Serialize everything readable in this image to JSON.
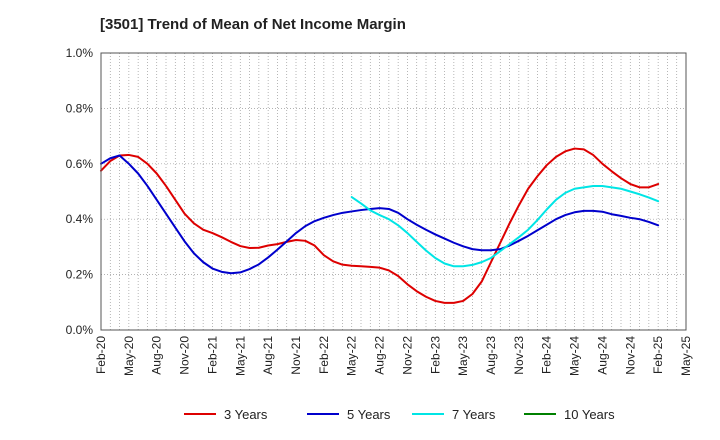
{
  "chart_data": {
    "type": "line",
    "title": "[3501]  Trend of Mean of Net Income Margin",
    "xlabel": "",
    "ylabel": "",
    "x_ticks": [
      "Feb-20",
      "May-20",
      "Aug-20",
      "Nov-20",
      "Feb-21",
      "May-21",
      "Aug-21",
      "Nov-21",
      "Feb-22",
      "May-22",
      "Aug-22",
      "Nov-22",
      "Feb-23",
      "May-23",
      "Aug-23",
      "Nov-23",
      "Feb-24",
      "May-24",
      "Aug-24",
      "Nov-24",
      "Feb-25",
      "May-25"
    ],
    "y_ticks": [
      "0.0%",
      "0.2%",
      "0.4%",
      "0.6%",
      "0.8%",
      "1.0%"
    ],
    "ylim": [
      0,
      1.0
    ],
    "y_unit": "%",
    "grid": "dotted",
    "legend_position": "bottom",
    "series": [
      {
        "name": "3 Years",
        "color": "#dd0000",
        "x": [
          "Feb-20",
          "Mar-20",
          "Apr-20",
          "May-20",
          "Jun-20",
          "Jul-20",
          "Aug-20",
          "Sep-20",
          "Oct-20",
          "Nov-20",
          "Dec-20",
          "Jan-21",
          "Feb-21",
          "Mar-21",
          "Apr-21",
          "May-21",
          "Jun-21",
          "Jul-21",
          "Aug-21",
          "Sep-21",
          "Oct-21",
          "Nov-21",
          "Dec-21",
          "Jan-22",
          "Feb-22",
          "Mar-22",
          "Apr-22",
          "May-22",
          "Jun-22",
          "Jul-22",
          "Aug-22",
          "Sep-22",
          "Oct-22",
          "Nov-22",
          "Dec-22",
          "Jan-23",
          "Feb-23",
          "Mar-23",
          "Apr-23",
          "May-23",
          "Jun-23",
          "Jul-23",
          "Aug-23",
          "Sep-23",
          "Oct-23",
          "Nov-23",
          "Dec-23",
          "Jan-24",
          "Feb-24",
          "Mar-24",
          "Apr-24",
          "May-24",
          "Jun-24",
          "Jul-24",
          "Aug-24",
          "Sep-24",
          "Oct-24",
          "Nov-24",
          "Dec-24",
          "Jan-25",
          "Feb-25"
        ],
        "values": [
          0.575,
          0.61,
          0.63,
          0.632,
          0.625,
          0.6,
          0.565,
          0.52,
          0.47,
          0.42,
          0.385,
          0.362,
          0.35,
          0.335,
          0.318,
          0.303,
          0.296,
          0.297,
          0.305,
          0.31,
          0.318,
          0.325,
          0.322,
          0.305,
          0.27,
          0.248,
          0.236,
          0.232,
          0.23,
          0.228,
          0.225,
          0.215,
          0.195,
          0.165,
          0.14,
          0.12,
          0.105,
          0.098,
          0.098,
          0.105,
          0.13,
          0.175,
          0.245,
          0.315,
          0.385,
          0.45,
          0.51,
          0.555,
          0.595,
          0.625,
          0.645,
          0.655,
          0.652,
          0.632,
          0.6,
          0.573,
          0.548,
          0.527,
          0.515,
          0.515,
          0.527
        ]
      },
      {
        "name": "5 Years",
        "color": "#0000cc",
        "x": [
          "Feb-20",
          "Mar-20",
          "Apr-20",
          "May-20",
          "Jun-20",
          "Jul-20",
          "Aug-20",
          "Sep-20",
          "Oct-20",
          "Nov-20",
          "Dec-20",
          "Jan-21",
          "Feb-21",
          "Mar-21",
          "Apr-21",
          "May-21",
          "Jun-21",
          "Jul-21",
          "Aug-21",
          "Sep-21",
          "Oct-21",
          "Nov-21",
          "Dec-21",
          "Jan-22",
          "Feb-22",
          "Mar-22",
          "Apr-22",
          "May-22",
          "Jun-22",
          "Jul-22",
          "Aug-22",
          "Sep-22",
          "Oct-22",
          "Nov-22",
          "Dec-22",
          "Jan-23",
          "Feb-23",
          "Mar-23",
          "Apr-23",
          "May-23",
          "Jun-23",
          "Jul-23",
          "Aug-23",
          "Sep-23",
          "Oct-23",
          "Nov-23",
          "Dec-23",
          "Jan-24",
          "Feb-24",
          "Mar-24",
          "Apr-24",
          "May-24",
          "Jun-24",
          "Jul-24",
          "Aug-24",
          "Sep-24",
          "Oct-24",
          "Nov-24",
          "Dec-24",
          "Jan-25",
          "Feb-25"
        ],
        "values": [
          0.6,
          0.62,
          0.63,
          0.6,
          0.565,
          0.52,
          0.47,
          0.42,
          0.37,
          0.32,
          0.277,
          0.245,
          0.222,
          0.21,
          0.205,
          0.208,
          0.22,
          0.237,
          0.262,
          0.29,
          0.32,
          0.35,
          0.375,
          0.393,
          0.405,
          0.415,
          0.423,
          0.428,
          0.433,
          0.437,
          0.44,
          0.437,
          0.423,
          0.4,
          0.38,
          0.362,
          0.345,
          0.33,
          0.315,
          0.302,
          0.292,
          0.288,
          0.288,
          0.292,
          0.305,
          0.322,
          0.34,
          0.36,
          0.38,
          0.4,
          0.415,
          0.425,
          0.43,
          0.43,
          0.427,
          0.418,
          0.412,
          0.405,
          0.4,
          0.39,
          0.378
        ]
      },
      {
        "name": "7 Years",
        "color": "#00e5e5",
        "x": [
          "May-22",
          "Jun-22",
          "Jul-22",
          "Aug-22",
          "Sep-22",
          "Oct-22",
          "Nov-22",
          "Dec-22",
          "Jan-23",
          "Feb-23",
          "Mar-23",
          "Apr-23",
          "May-23",
          "Jun-23",
          "Jul-23",
          "Aug-23",
          "Sep-23",
          "Oct-23",
          "Nov-23",
          "Dec-23",
          "Jan-24",
          "Feb-24",
          "Mar-24",
          "Apr-24",
          "May-24",
          "Jun-24",
          "Jul-24",
          "Aug-24",
          "Sep-24",
          "Oct-24",
          "Nov-24",
          "Dec-24",
          "Jan-25",
          "Feb-25"
        ],
        "values": [
          0.48,
          0.457,
          0.432,
          0.415,
          0.4,
          0.378,
          0.35,
          0.318,
          0.287,
          0.26,
          0.24,
          0.23,
          0.23,
          0.235,
          0.245,
          0.26,
          0.285,
          0.31,
          0.335,
          0.362,
          0.397,
          0.435,
          0.47,
          0.495,
          0.51,
          0.515,
          0.52,
          0.52,
          0.515,
          0.51,
          0.5,
          0.49,
          0.478,
          0.465
        ]
      },
      {
        "name": "10 Years",
        "color": "#008000",
        "x": [],
        "values": []
      }
    ]
  }
}
